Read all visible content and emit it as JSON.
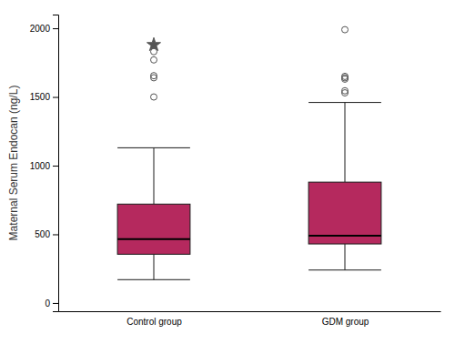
{
  "chart_data": {
    "type": "box",
    "ylabel": "Maternal Serum Endocan (ng/L)",
    "categories": [
      "Control group",
      "GDM group"
    ],
    "whisker_low": [
      170,
      240
    ],
    "q1": [
      355,
      430
    ],
    "median": [
      465,
      490
    ],
    "q3": [
      720,
      880
    ],
    "whisker_high": [
      1130,
      1460
    ],
    "outliers_circle": [
      [
        1500,
        1640,
        1655,
        1770,
        1830
      ],
      [
        1530,
        1545,
        1630,
        1640,
        1650,
        1990
      ]
    ],
    "outliers_star": [
      [
        1880
      ],
      []
    ],
    "color": "#b5295e",
    "ylim": [
      -60,
      2100
    ],
    "yticks": [
      0,
      500,
      1000,
      1500,
      2000
    ],
    "grid": false
  }
}
